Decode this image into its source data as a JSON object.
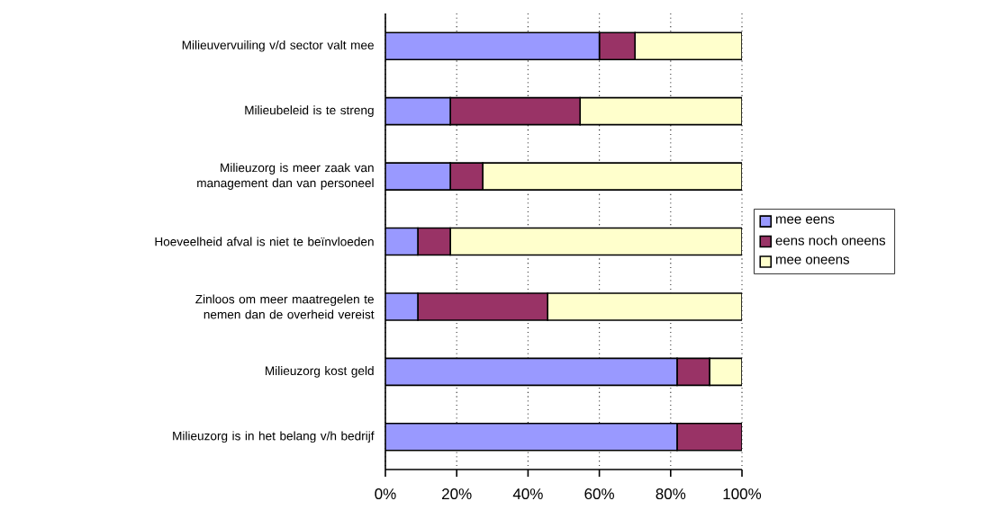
{
  "chart_data": {
    "type": "bar",
    "orientation": "horizontal",
    "stacked": true,
    "categories": [
      "Milieuvervuiling v/d sector valt mee",
      "Milieubeleid is te streng",
      "Milieuzorg is meer zaak van management dan van personeel",
      "Hoeveelheid afval is niet te beïnvloeden",
      "Zinloos om meer maatregelen te nemen dan de overheid vereist",
      "Milieuzorg kost geld",
      "Milieuzorg is in het belang v/h bedrijf"
    ],
    "series": [
      {
        "name": "mee eens",
        "color": "#9999ff",
        "values": [
          60,
          18.2,
          18.2,
          9.1,
          9.1,
          81.8,
          81.8
        ]
      },
      {
        "name": "eens noch oneens",
        "color": "#993366",
        "values": [
          10,
          36.4,
          9.1,
          9.1,
          36.4,
          9.1,
          18.2
        ]
      },
      {
        "name": "mee oneens",
        "color": "#ffffcc",
        "values": [
          30,
          45.4,
          72.7,
          81.8,
          54.5,
          9.1,
          0
        ]
      }
    ],
    "xlim": [
      0,
      100
    ],
    "xticks": [
      {
        "value": 0,
        "label": "0%"
      },
      {
        "value": 20,
        "label": "20%"
      },
      {
        "value": 40,
        "label": "40%"
      },
      {
        "value": 60,
        "label": "60%"
      },
      {
        "value": 80,
        "label": "80%"
      },
      {
        "value": 100,
        "label": "100%"
      }
    ],
    "grid": "x",
    "legend": "right"
  }
}
